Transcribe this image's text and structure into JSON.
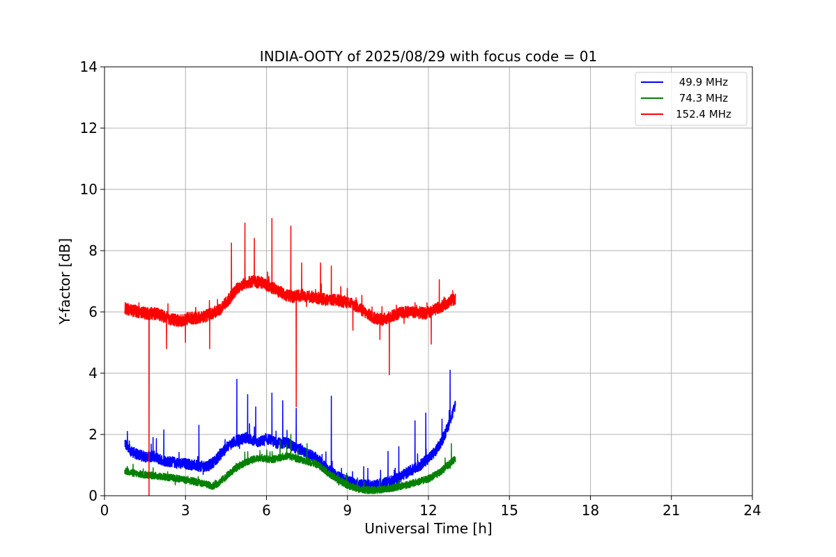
{
  "chart_data": {
    "type": "line",
    "title": "INDIA-OOTY of 2025/08/29 with focus code = 01",
    "xlabel": "Universal Time [h]",
    "ylabel": "Y-factor [dB]",
    "xlim": [
      0,
      24
    ],
    "ylim": [
      0,
      14
    ],
    "xticks": [
      0,
      3,
      6,
      9,
      12,
      15,
      18,
      21,
      24
    ],
    "yticks": [
      0,
      2,
      4,
      6,
      8,
      10,
      12,
      14
    ],
    "grid": true,
    "legend_position": "top-right",
    "series": [
      {
        "name": " 49.9 MHz",
        "color": "#0000ff",
        "x": [
          0.75,
          0.85,
          1.0,
          1.2,
          1.4,
          1.6,
          1.8,
          2.0,
          2.2,
          2.5,
          2.8,
          3.0,
          3.3,
          3.6,
          3.9,
          4.1,
          4.3,
          4.5,
          4.7,
          4.9,
          5.1,
          5.3,
          5.5,
          5.7,
          5.9,
          6.1,
          6.3,
          6.5,
          6.7,
          6.9,
          7.1,
          7.3,
          7.5,
          7.7,
          7.9,
          8.1,
          8.3,
          8.5,
          8.7,
          8.9,
          9.1,
          9.3,
          9.5,
          9.7,
          9.9,
          10.1,
          10.3,
          10.5,
          10.7,
          10.9,
          11.1,
          11.3,
          11.5,
          11.7,
          11.9,
          12.1,
          12.3,
          12.5,
          12.7,
          12.9,
          13.0
        ],
        "y": [
          1.75,
          1.55,
          1.45,
          1.35,
          1.3,
          1.25,
          1.3,
          1.2,
          1.15,
          1.1,
          1.05,
          1.05,
          1.0,
          0.95,
          1.0,
          1.15,
          1.35,
          1.55,
          1.7,
          1.8,
          1.85,
          1.9,
          1.8,
          1.75,
          1.8,
          1.85,
          1.75,
          1.7,
          1.75,
          1.65,
          1.55,
          1.5,
          1.35,
          1.3,
          1.2,
          1.0,
          0.85,
          0.7,
          0.6,
          0.5,
          0.45,
          0.4,
          0.35,
          0.35,
          0.33,
          0.35,
          0.4,
          0.45,
          0.5,
          0.6,
          0.7,
          0.8,
          0.9,
          1.0,
          1.15,
          1.3,
          1.5,
          1.8,
          2.2,
          2.7,
          3.0
        ],
        "spikes": [
          [
            0.85,
            2.1
          ],
          [
            1.8,
            1.9
          ],
          [
            2.2,
            2.15
          ],
          [
            3.5,
            2.3
          ],
          [
            4.9,
            3.8
          ],
          [
            5.3,
            3.3
          ],
          [
            5.6,
            2.9
          ],
          [
            6.2,
            3.35
          ],
          [
            6.6,
            3.1
          ],
          [
            7.1,
            2.85
          ],
          [
            8.4,
            3.25
          ],
          [
            9.6,
            0.95
          ],
          [
            10.5,
            1.45
          ],
          [
            10.9,
            1.6
          ],
          [
            11.5,
            2.45
          ],
          [
            11.9,
            2.7
          ],
          [
            12.5,
            2.5
          ],
          [
            12.8,
            4.1
          ]
        ],
        "noise": 0.18
      },
      {
        "name": " 74.3 MHz",
        "color": "#008000",
        "x": [
          0.75,
          1.0,
          1.3,
          1.6,
          1.9,
          2.2,
          2.5,
          2.8,
          3.1,
          3.4,
          3.7,
          4.0,
          4.2,
          4.4,
          4.6,
          4.8,
          5.0,
          5.2,
          5.4,
          5.6,
          5.8,
          6.0,
          6.2,
          6.4,
          6.6,
          6.8,
          7.0,
          7.2,
          7.4,
          7.6,
          7.8,
          8.0,
          8.2,
          8.4,
          8.6,
          8.8,
          9.0,
          9.2,
          9.4,
          9.6,
          9.8,
          10.0,
          10.2,
          10.4,
          10.6,
          10.8,
          11.0,
          11.2,
          11.4,
          11.6,
          11.8,
          12.0,
          12.2,
          12.4,
          12.6,
          12.8,
          13.0
        ],
        "y": [
          0.82,
          0.75,
          0.7,
          0.68,
          0.65,
          0.62,
          0.58,
          0.55,
          0.5,
          0.45,
          0.38,
          0.32,
          0.4,
          0.55,
          0.7,
          0.85,
          0.98,
          1.08,
          1.15,
          1.2,
          1.25,
          1.2,
          1.18,
          1.22,
          1.28,
          1.3,
          1.25,
          1.2,
          1.15,
          1.1,
          1.05,
          0.95,
          0.8,
          0.68,
          0.55,
          0.45,
          0.35,
          0.28,
          0.22,
          0.2,
          0.18,
          0.18,
          0.2,
          0.22,
          0.25,
          0.28,
          0.32,
          0.35,
          0.4,
          0.45,
          0.5,
          0.55,
          0.65,
          0.75,
          0.9,
          1.05,
          1.2
        ],
        "spikes": [
          [
            6.5,
            1.8
          ],
          [
            6.9,
            2.0
          ],
          [
            7.5,
            1.7
          ],
          [
            12.85,
            1.7
          ]
        ],
        "noise": 0.12
      },
      {
        "name": "152.4 MHz",
        "color": "#ff0000",
        "x": [
          0.75,
          1.0,
          1.3,
          1.6,
          1.9,
          2.2,
          2.5,
          2.8,
          3.1,
          3.4,
          3.7,
          4.0,
          4.3,
          4.6,
          4.9,
          5.2,
          5.5,
          5.8,
          6.1,
          6.4,
          6.7,
          7.0,
          7.3,
          7.6,
          7.9,
          8.2,
          8.5,
          8.8,
          9.1,
          9.4,
          9.7,
          10.0,
          10.3,
          10.6,
          10.9,
          11.2,
          11.5,
          11.8,
          12.1,
          12.4,
          12.7,
          13.0
        ],
        "y": [
          6.1,
          6.05,
          6.0,
          5.95,
          5.95,
          5.85,
          5.75,
          5.7,
          5.8,
          5.8,
          5.85,
          5.95,
          6.1,
          6.4,
          6.75,
          6.95,
          7.0,
          6.95,
          6.85,
          6.7,
          6.55,
          6.5,
          6.55,
          6.5,
          6.45,
          6.4,
          6.4,
          6.35,
          6.3,
          6.15,
          5.95,
          5.8,
          5.75,
          5.85,
          5.95,
          6.0,
          6.0,
          5.95,
          6.0,
          6.15,
          6.3,
          6.45
        ],
        "spikes": [
          [
            2.3,
            4.8
          ],
          [
            3.0,
            5.0
          ],
          [
            3.9,
            4.8
          ],
          [
            4.7,
            8.25
          ],
          [
            5.2,
            8.9
          ],
          [
            5.55,
            8.4
          ],
          [
            6.2,
            9.05
          ],
          [
            6.9,
            8.8
          ],
          [
            7.3,
            7.6
          ],
          [
            8.0,
            7.6
          ],
          [
            8.4,
            7.5
          ],
          [
            9.2,
            5.4
          ],
          [
            10.2,
            5.1
          ],
          [
            11.5,
            6.3
          ],
          [
            12.1,
            4.95
          ],
          [
            12.4,
            7.05
          ],
          [
            12.9,
            6.7
          ]
        ],
        "dips": [
          [
            1.65,
            0.0
          ],
          [
            7.1,
            2.9
          ],
          [
            10.55,
            3.95
          ]
        ],
        "noise": 0.2
      }
    ]
  }
}
